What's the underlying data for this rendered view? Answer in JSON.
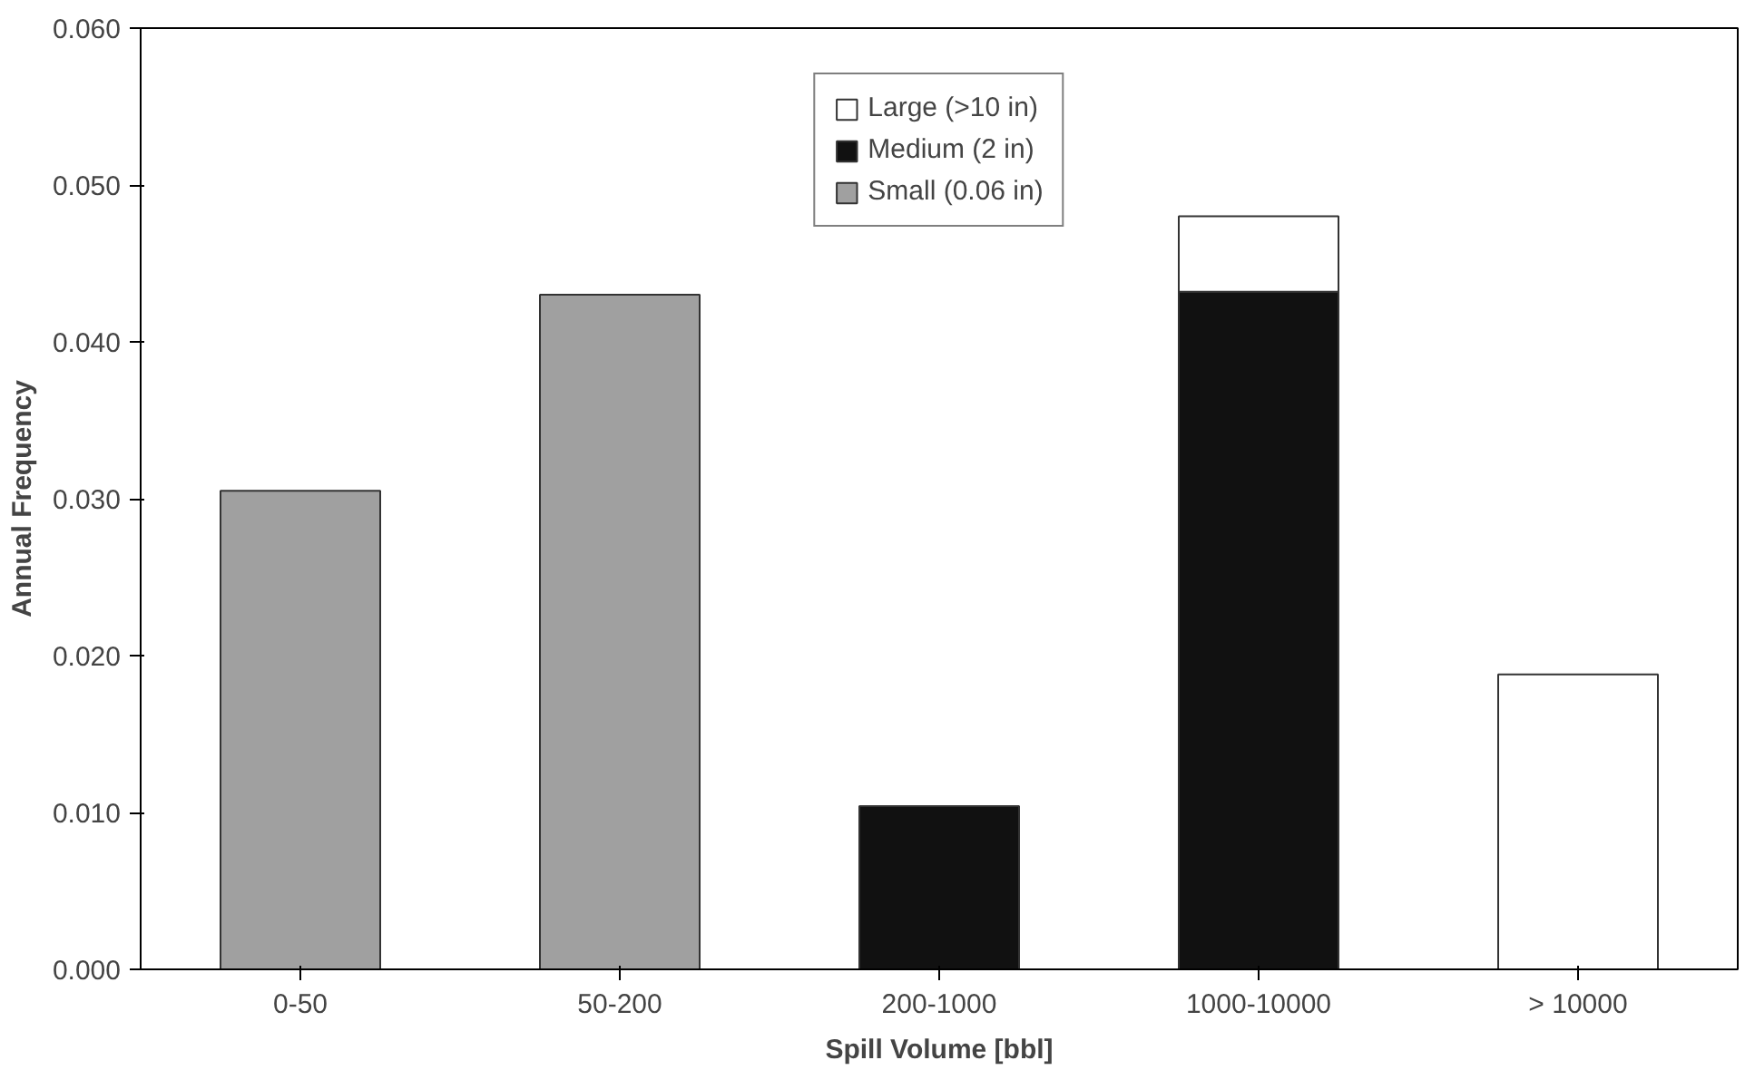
{
  "chart_data": {
    "type": "bar",
    "stacked": true,
    "xlabel": "Spill Volume [bbl]",
    "ylabel": "Annual Frequency",
    "categories": [
      "0-50",
      "50-200",
      "200-1000",
      "1000-10000",
      "> 10000"
    ],
    "series": [
      {
        "name": "Small (0.06 in)",
        "color": "#a0a0a0",
        "values": [
          0.0305,
          0.043,
          null,
          null,
          null
        ]
      },
      {
        "name": "Medium (2 in)",
        "color": "#111111",
        "values": [
          null,
          null,
          0.0104,
          0.0432,
          null
        ]
      },
      {
        "name": "Large (>10 in)",
        "color": "#ffffff",
        "values": [
          null,
          null,
          null,
          0.0048,
          0.0188
        ]
      }
    ],
    "ylim": [
      0,
      0.06
    ],
    "yticks": [
      {
        "value": 0,
        "label": "0.000"
      },
      {
        "value": 0.01,
        "label": "0.010"
      },
      {
        "value": 0.02,
        "label": "0.020"
      },
      {
        "value": 0.03,
        "label": "0.030"
      },
      {
        "value": 0.04,
        "label": "0.040"
      },
      {
        "value": 0.05,
        "label": "0.050"
      },
      {
        "value": 0.06,
        "label": "0.060"
      }
    ],
    "grid": false,
    "legend": "top"
  }
}
